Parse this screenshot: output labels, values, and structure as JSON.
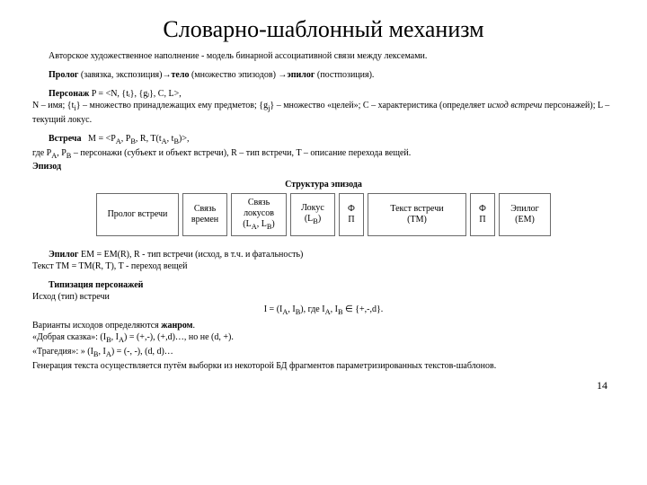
{
  "title": "Словарно-шаблонный механизм",
  "p1": "Авторское художественное наполнение - модель бинарной ассоциативной связи между лексемами.",
  "p2_prolog": "Пролог",
  "p2_mid1": " (завязка, экспозиция)→",
  "p2_telo": "тело",
  "p2_mid2": " (множество эпизодов) →",
  "p2_epilog": "эпилог",
  "p2_end": " (постпозиция).",
  "p3_head": "Персонаж",
  "p3_formula": " P = <N, {tᵢ}, {gⱼ}, C, L>,",
  "p3_body": "N – имя; {tᵢ} – множество принадлежащих ему предметов; {gⱼ} – множество «целей»; C – характеристика (определяет исход встречи персонажей); L – текущий локус.",
  "p4_head": "Встреча",
  "p4_formula": "   M = <P_A, P_B, R, T(t_A, t_B)>,",
  "p4_body": "где P_A, P_B – персонажи (субъект и объект встречи), R – тип встречи, T – описание перехода вещей.",
  "p4_epizod": "Эпизод",
  "structure_label": "Структура эпизода",
  "boxes": {
    "b0": "Пролог встречи",
    "b1_l1": "Связь",
    "b1_l2": "времен",
    "b2_l1": "Связь",
    "b2_l2": "локусов",
    "b2_l3": "(L_A, L_B)",
    "b3_l1": "Локус",
    "b3_l2": "(L_B)",
    "b4_l1": "Ф",
    "b4_l2": "П",
    "b5_l1": "Текст встречи",
    "b5_l2": "(TM)",
    "b6_l1": "Ф",
    "b6_l2": "П",
    "b7_l1": "Эпилог",
    "b7_l2": "(EM)"
  },
  "p5_epilog": "Эпилог",
  "p5_rest": " EM = EM(R), R - тип встречи (исход, в т.ч. и фатальность)",
  "p5_text": "Текст TM = TM(R, T), T - переход вещей",
  "p6_head": "Типизация персонажей",
  "p6_line2": "Исход (тип) встречи",
  "p6_formula": "I = (I_A, I_B), где I_A, I_B ∈ {+,-,d}.",
  "p7_l1": "Варианты исходов определяются жанром.",
  "p7_l2": "«Добрая сказка»: (I_B, I_A) = (+,-), (+,d)…, но не (d, +).",
  "p7_l3": "«Трагедия»: » (I_B, I_A) = (-, -), (d, d)…",
  "p7_l4": "Генерация текста осуществляется путём выборки из некоторой БД фрагментов параметризированных текстов-шаблонов.",
  "page_number": "14",
  "box_widths": {
    "b0": 92,
    "b1": 50,
    "b2": 62,
    "b3": 50,
    "b4": 28,
    "b5": 110,
    "b6": 28,
    "b7": 58
  },
  "colors": {
    "text": "#000000",
    "border": "#6a6a6a",
    "bg": "#ffffff"
  }
}
